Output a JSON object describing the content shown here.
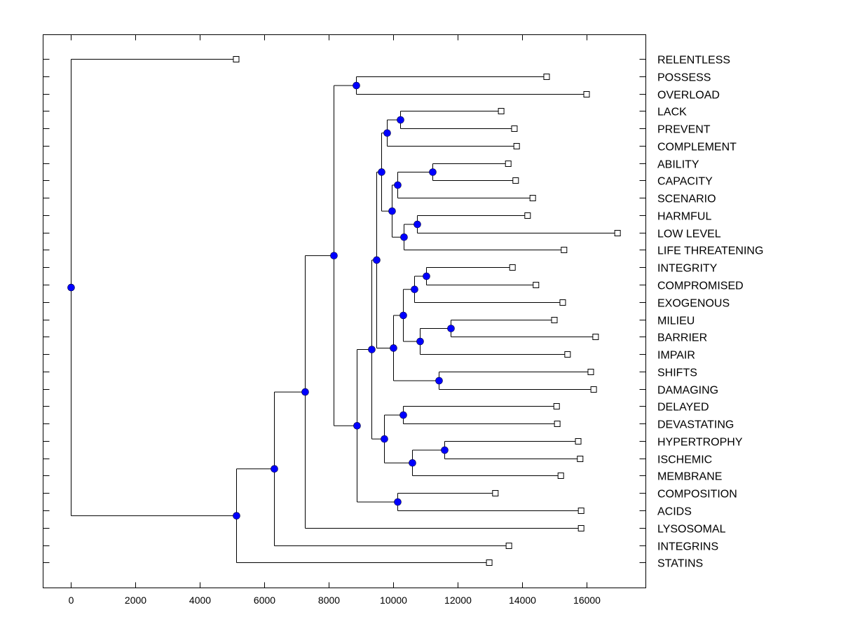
{
  "chart_data": {
    "type": "dendrogram",
    "title": "",
    "xlabel": "",
    "ylabel": "",
    "xlim": [
      -850,
      17850
    ],
    "xticks": [
      0,
      2000,
      4000,
      6000,
      8000,
      10000,
      12000,
      14000,
      16000
    ],
    "xtick_labels": [
      "0",
      "2000",
      "4000",
      "6000",
      "8000",
      "10000",
      "12000",
      "14000",
      "16000"
    ],
    "grid": false,
    "legend": "none",
    "colors": {
      "node_fill": "#0000ff",
      "line": "#000000",
      "leaf_fill": "#ffffff"
    },
    "leaves": [
      {
        "label": "RELENTLESS",
        "value": 5130
      },
      {
        "label": "POSSESS",
        "value": 14760
      },
      {
        "label": "OVERLOAD",
        "value": 16000
      },
      {
        "label": "LACK",
        "value": 13350
      },
      {
        "label": "PREVENT",
        "value": 13760
      },
      {
        "label": "COMPLEMENT",
        "value": 13830
      },
      {
        "label": "ABILITY",
        "value": 13570
      },
      {
        "label": "CAPACITY",
        "value": 13800
      },
      {
        "label": "SCENARIO",
        "value": 14330
      },
      {
        "label": "HARMFUL",
        "value": 14170
      },
      {
        "label": "LOW LEVEL",
        "value": 16960
      },
      {
        "label": "LIFE THREATENING",
        "value": 15300
      },
      {
        "label": "INTEGRITY",
        "value": 13700
      },
      {
        "label": "COMPROMISED",
        "value": 14430
      },
      {
        "label": "EXOGENOUS",
        "value": 15260
      },
      {
        "label": "MILIEU",
        "value": 15000
      },
      {
        "label": "BARRIER",
        "value": 16280
      },
      {
        "label": "IMPAIR",
        "value": 15410
      },
      {
        "label": "SHIFTS",
        "value": 16130
      },
      {
        "label": "DAMAGING",
        "value": 16220
      },
      {
        "label": "DELAYED",
        "value": 15070
      },
      {
        "label": "DEVASTATING",
        "value": 15090
      },
      {
        "label": "HYPERTROPHY",
        "value": 15740
      },
      {
        "label": "ISCHEMIC",
        "value": 15800
      },
      {
        "label": "MEMBRANE",
        "value": 15200
      },
      {
        "label": "COMPOSITION",
        "value": 13170
      },
      {
        "label": "ACIDS",
        "value": 15830
      },
      {
        "label": "LYSOSOMAL",
        "value": 15830
      },
      {
        "label": "INTEGRINS",
        "value": 13590
      },
      {
        "label": "STATINS",
        "value": 12980
      }
    ],
    "tree": {
      "value": 0,
      "children": [
        {
          "leaf": 0
        },
        {
          "value": 5130,
          "children": [
            {
              "value": 6300,
              "children": [
                {
                  "value": 7260,
                  "children": [
                    {
                      "value": 8150,
                      "children": [
                        {
                          "value": 8850,
                          "children": [
                            {
                              "leaf": 1
                            },
                            {
                              "leaf": 2
                            }
                          ]
                        },
                        {
                          "value": 8880,
                          "children": [
                            {
                              "value": 9330,
                              "children": [
                                {
                                  "value": 9480,
                                  "children": [
                                    {
                                      "value": 9630,
                                      "children": [
                                        {
                                          "value": 9800,
                                          "children": [
                                            {
                                              "value": 10220,
                                              "children": [
                                                {
                                                  "leaf": 3
                                                },
                                                {
                                                  "leaf": 4
                                                }
                                              ]
                                            },
                                            {
                                              "leaf": 5
                                            }
                                          ]
                                        },
                                        {
                                          "value": 9960,
                                          "children": [
                                            {
                                              "value": 10130,
                                              "children": [
                                                {
                                                  "value": 11220,
                                                  "children": [
                                                    {
                                                      "leaf": 6
                                                    },
                                                    {
                                                      "leaf": 7
                                                    }
                                                  ]
                                                },
                                                {
                                                  "leaf": 8
                                                }
                                              ]
                                            },
                                            {
                                              "value": 10330,
                                              "children": [
                                                {
                                                  "value": 10740,
                                                  "children": [
                                                    {
                                                      "leaf": 9
                                                    },
                                                    {
                                                      "leaf": 10
                                                    }
                                                  ]
                                                },
                                                {
                                                  "leaf": 11
                                                }
                                              ]
                                            }
                                          ]
                                        }
                                      ]
                                    },
                                    {
                                      "value": 10000,
                                      "children": [
                                        {
                                          "value": 10300,
                                          "children": [
                                            {
                                              "value": 10650,
                                              "children": [
                                                {
                                                  "value": 11020,
                                                  "children": [
                                                    {
                                                      "leaf": 12
                                                    },
                                                    {
                                                      "leaf": 13
                                                    }
                                                  ]
                                                },
                                                {
                                                  "leaf": 14
                                                }
                                              ]
                                            },
                                            {
                                              "value": 10830,
                                              "children": [
                                                {
                                                  "value": 11780,
                                                  "children": [
                                                    {
                                                      "leaf": 15
                                                    },
                                                    {
                                                      "leaf": 16
                                                    }
                                                  ]
                                                },
                                                {
                                                  "leaf": 17
                                                }
                                              ]
                                            }
                                          ]
                                        },
                                        {
                                          "value": 11410,
                                          "children": [
                                            {
                                              "leaf": 18
                                            },
                                            {
                                              "leaf": 19
                                            }
                                          ]
                                        }
                                      ]
                                    }
                                  ]
                                },
                                {
                                  "value": 9720,
                                  "children": [
                                    {
                                      "value": 10300,
                                      "children": [
                                        {
                                          "leaf": 20
                                        },
                                        {
                                          "leaf": 21
                                        }
                                      ]
                                    },
                                    {
                                      "value": 10590,
                                      "children": [
                                        {
                                          "value": 11590,
                                          "children": [
                                            {
                                              "leaf": 22
                                            },
                                            {
                                              "leaf": 23
                                            }
                                          ]
                                        },
                                        {
                                          "leaf": 24
                                        }
                                      ]
                                    }
                                  ]
                                }
                              ]
                            },
                            {
                              "value": 10130,
                              "children": [
                                {
                                  "leaf": 25
                                },
                                {
                                  "leaf": 26
                                }
                              ]
                            }
                          ]
                        }
                      ]
                    },
                    {
                      "leaf": 27
                    }
                  ]
                },
                {
                  "leaf": 28
                }
              ]
            },
            {
              "leaf": 29
            }
          ]
        }
      ]
    }
  }
}
